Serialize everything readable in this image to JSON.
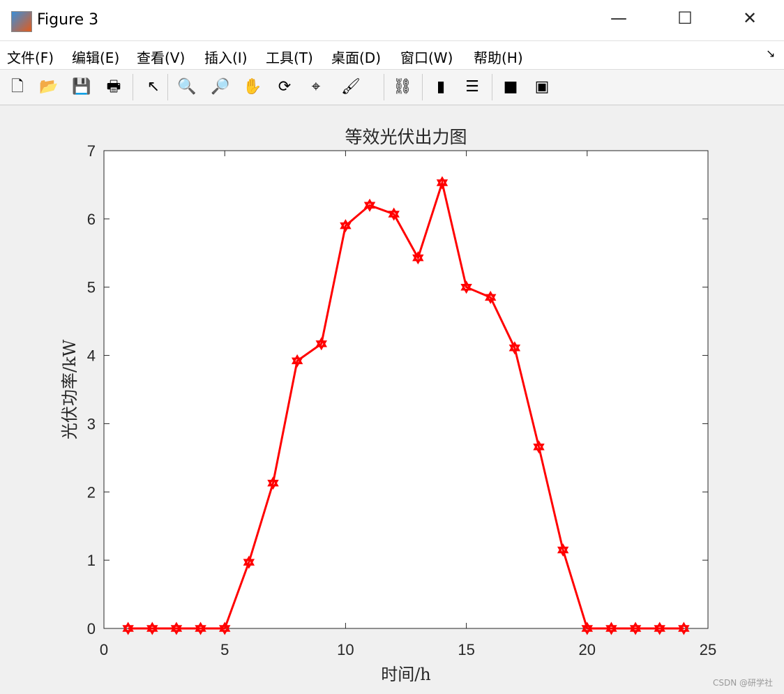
{
  "window": {
    "title": "Figure 3"
  },
  "menu": [
    "文件(F)",
    "编辑(E)",
    "查看(V)",
    "插入(I)",
    "工具(T)",
    "桌面(D)",
    "窗口(W)",
    "帮助(H)"
  ],
  "toolbar": [
    {
      "icon": "new-figure-icon",
      "glyph": "🗋"
    },
    {
      "icon": "open-icon",
      "glyph": "📂"
    },
    {
      "icon": "save-icon",
      "glyph": "💾"
    },
    {
      "icon": "print-icon",
      "glyph": "🖶"
    },
    {
      "icon": "pointer-icon",
      "glyph": "↖"
    },
    {
      "icon": "zoom-in-icon",
      "glyph": "🔍"
    },
    {
      "icon": "zoom-out-icon",
      "glyph": "🔎"
    },
    {
      "icon": "pan-icon",
      "glyph": "✋"
    },
    {
      "icon": "rotate-3d-icon",
      "glyph": "⟳"
    },
    {
      "icon": "data-cursor-icon",
      "glyph": "⌖"
    },
    {
      "icon": "brush-icon",
      "glyph": "🖌"
    },
    {
      "icon": "link-plot-icon",
      "glyph": "⛓"
    },
    {
      "icon": "colorbar-icon",
      "glyph": "▮"
    },
    {
      "icon": "legend-icon",
      "glyph": "☰"
    },
    {
      "icon": "hide-plot-tools-icon",
      "glyph": "■"
    },
    {
      "icon": "show-plot-tools-icon",
      "glyph": "▣"
    }
  ],
  "watermark": "CSDN @研学社",
  "chart_data": {
    "type": "line",
    "title": "等效光伏出力图",
    "xlabel": "时间/h",
    "ylabel": "光伏功率/kW",
    "xlim": [
      0,
      25
    ],
    "ylim": [
      0,
      7
    ],
    "xticks": [
      0,
      5,
      10,
      15,
      20,
      25
    ],
    "yticks": [
      0,
      1,
      2,
      3,
      4,
      5,
      6,
      7
    ],
    "grid": false,
    "marker": "hexagram",
    "color": "#ff0000",
    "x": [
      1,
      2,
      3,
      4,
      5,
      6,
      7,
      8,
      9,
      10,
      11,
      12,
      13,
      14,
      15,
      16,
      17,
      18,
      19,
      20,
      21,
      22,
      23,
      24
    ],
    "y": [
      0,
      0,
      0,
      0,
      0,
      0.97,
      2.13,
      3.92,
      4.17,
      5.9,
      6.2,
      6.07,
      5.43,
      6.53,
      5.0,
      4.85,
      4.11,
      2.66,
      1.15,
      0,
      0,
      0,
      0,
      0
    ]
  }
}
